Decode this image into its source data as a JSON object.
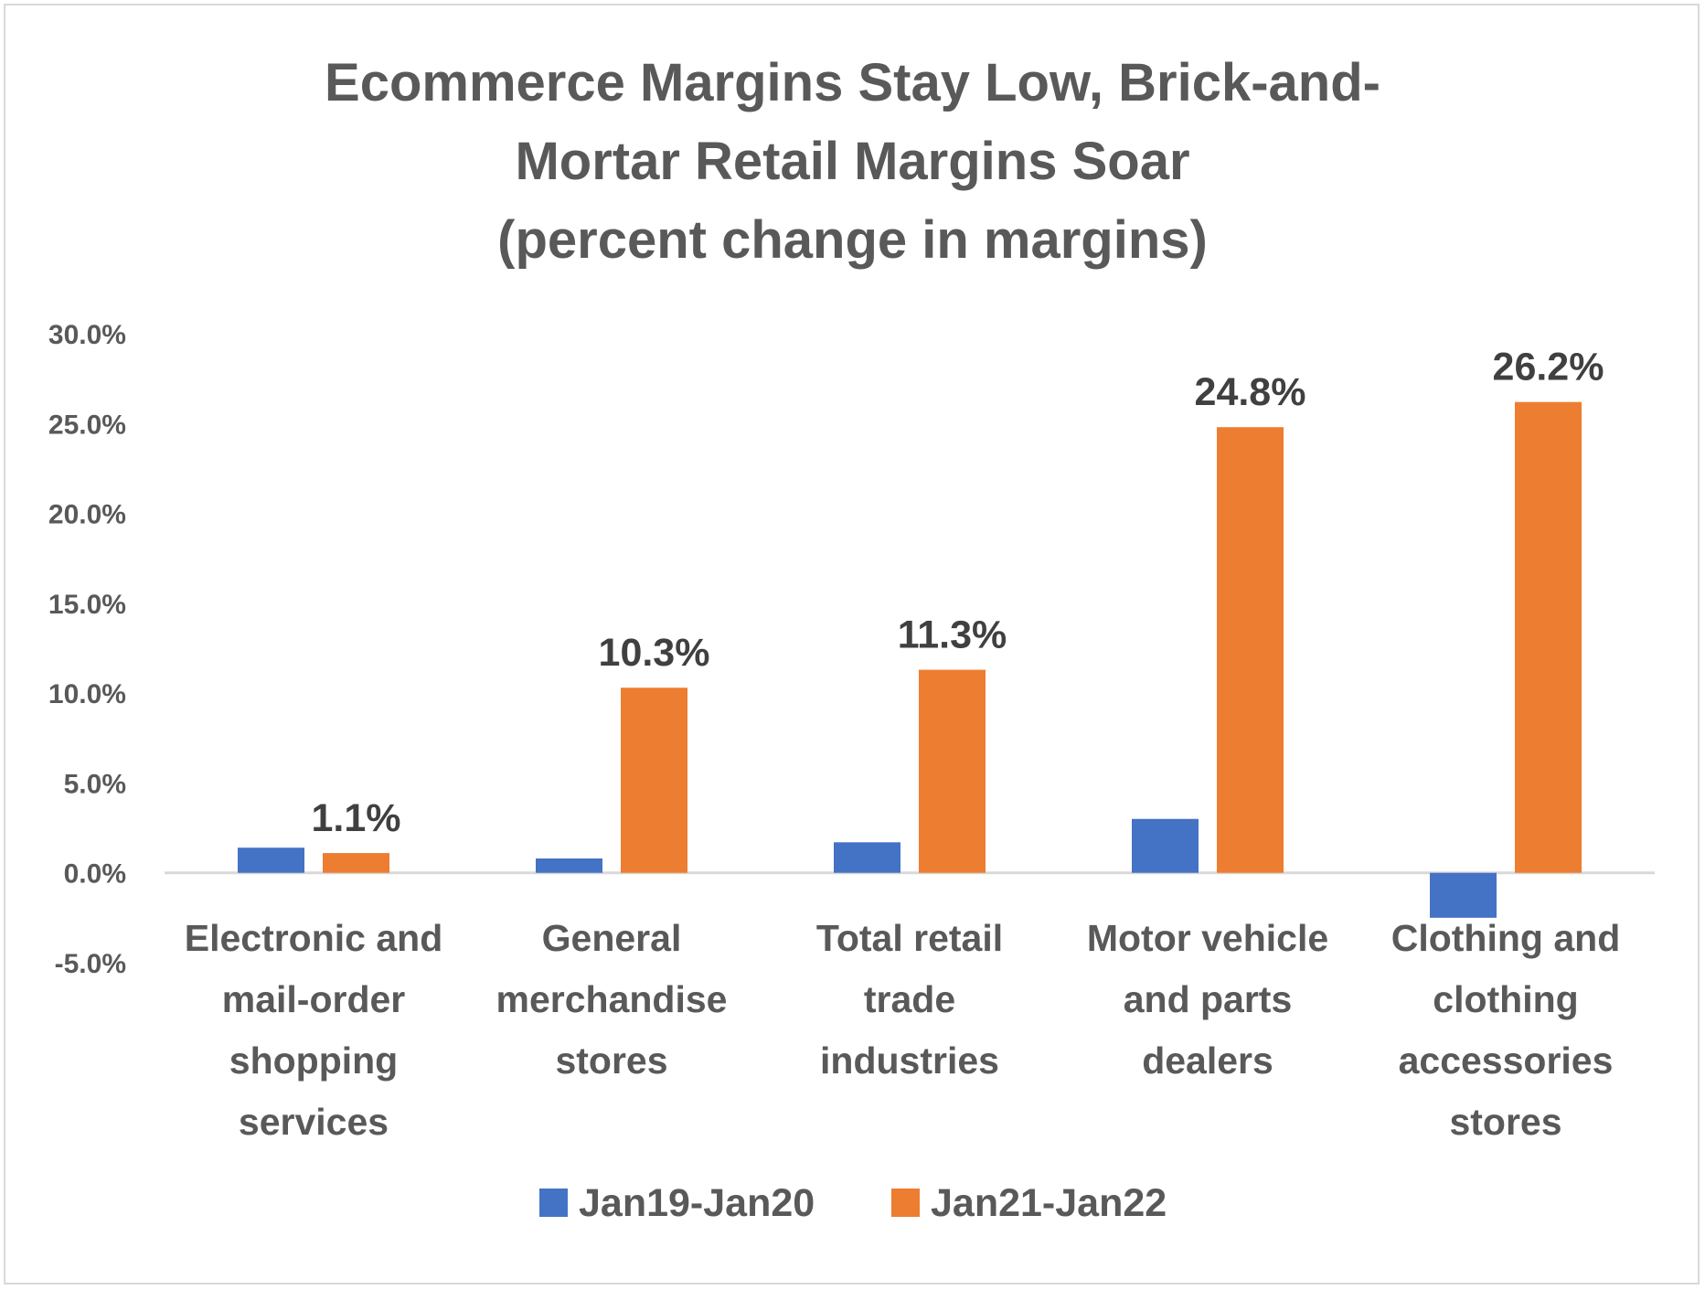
{
  "chart_data": {
    "type": "bar",
    "title": "Ecommerce Margins Stay Low, Brick-and-\nMortar Retail Margins Soar\n(percent change in margins)",
    "categories": [
      "Electronic and mail-order shopping services",
      "General merchandise stores",
      "Total retail trade industries",
      "Motor vehicle and parts dealers",
      "Clothing and clothing accessories stores"
    ],
    "category_lines": [
      [
        "Electronic and",
        "mail-order",
        "shopping",
        "services"
      ],
      [
        "General",
        "merchandise",
        "stores"
      ],
      [
        "Total retail",
        "trade",
        "industries"
      ],
      [
        "Motor vehicle",
        "and parts",
        "dealers"
      ],
      [
        "Clothing and",
        "clothing",
        "accessories",
        "stores"
      ]
    ],
    "series": [
      {
        "name": "Jan19-Jan20",
        "color": "#4472c4",
        "values": [
          1.4,
          0.8,
          1.7,
          3.0,
          -2.5
        ],
        "data_labels": []
      },
      {
        "name": "Jan21-Jan22",
        "color": "#ed7d31",
        "values": [
          1.1,
          10.3,
          11.3,
          24.8,
          26.2
        ],
        "data_labels": [
          "1.1%",
          "10.3%",
          "11.3%",
          "24.8%",
          "26.2%"
        ]
      }
    ],
    "ylim": [
      -5,
      30
    ],
    "yticks": [
      30,
      25,
      20,
      15,
      10,
      5,
      0,
      -5
    ],
    "ytick_labels": [
      "30.0%",
      "25.0%",
      "20.0%",
      "15.0%",
      "10.0%",
      "5.0%",
      "0.0%",
      "-5.0%"
    ],
    "grid": false,
    "legend_position": "bottom",
    "xlabel": "",
    "ylabel": ""
  }
}
